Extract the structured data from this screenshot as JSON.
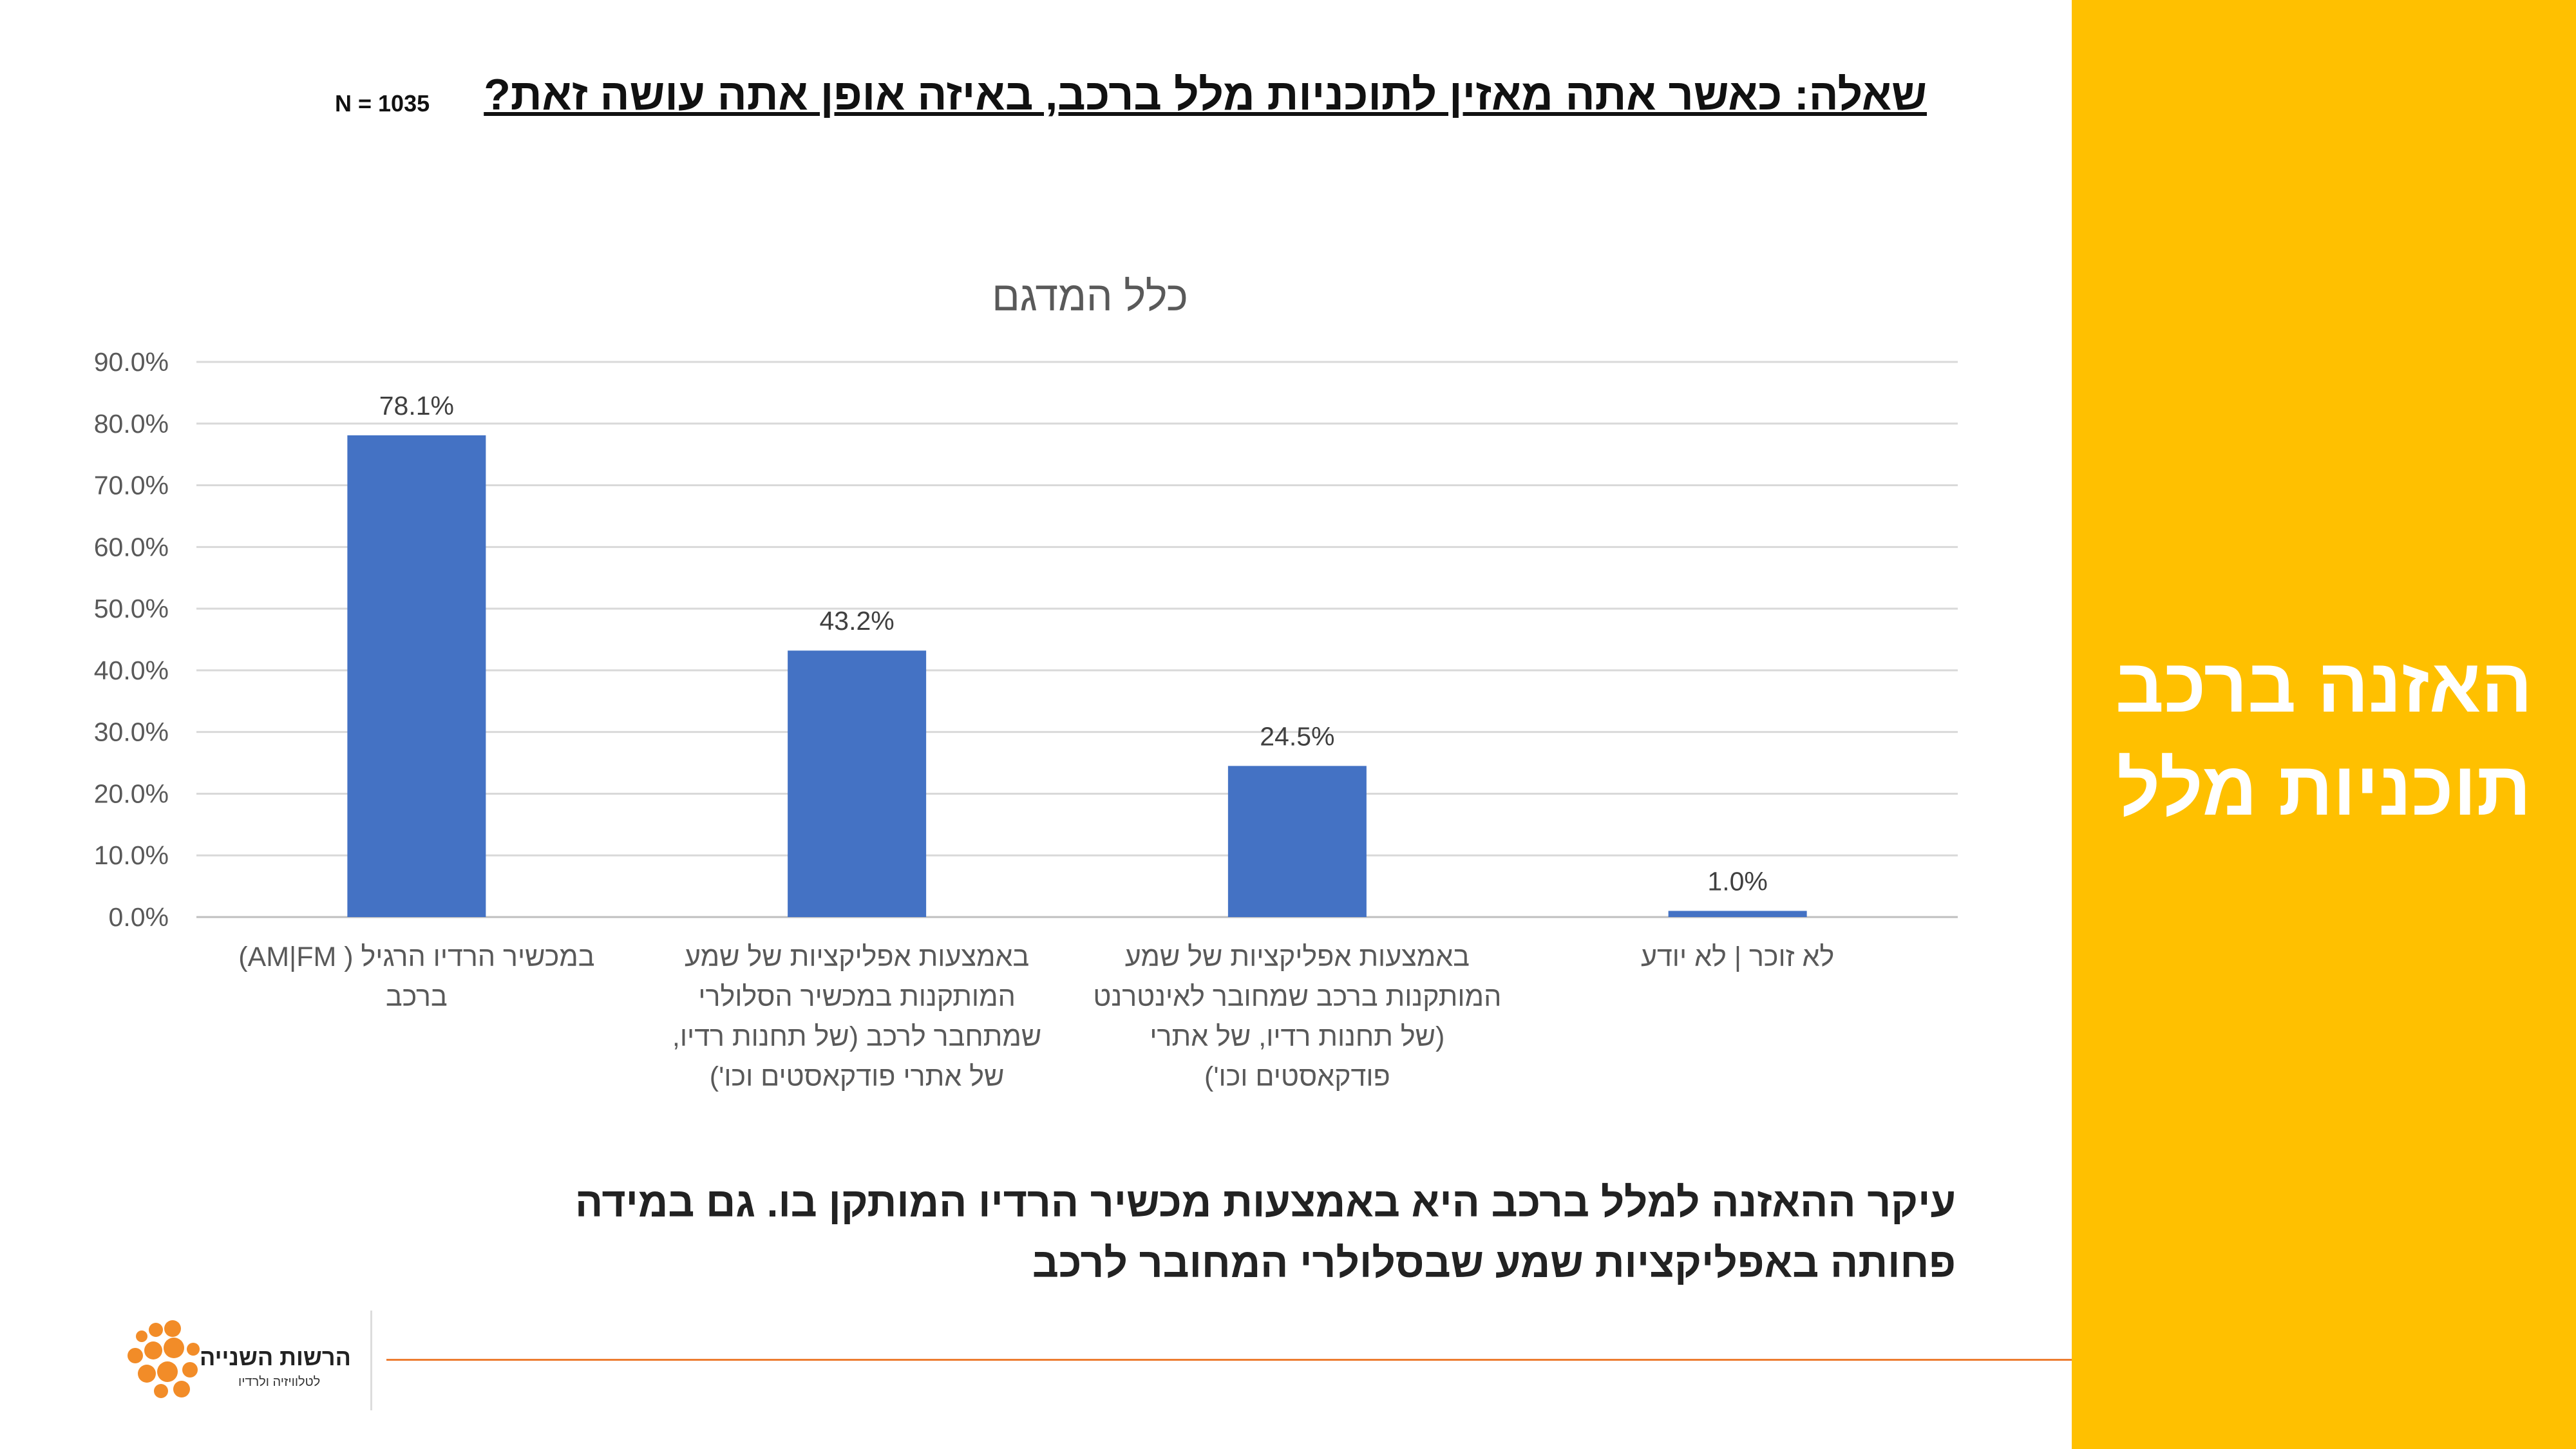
{
  "slide": {
    "question": "שאלה: כאשר אתה מאזין לתוכניות מלל ברכב, באיזה אופן אתה עושה זאת?",
    "sample_size": "N = 1035",
    "sidebar_title_line1": "האזנה ברכב",
    "sidebar_title_line2": "תוכניות מלל",
    "takeaway": "עיקר ההאזנה למלל ברכב היא באמצעות מכשיר הרדיו המותקן בו. גם במידה פחותה באפליקציות שמע שבסלולרי המחובר לרכב",
    "logo_text": "הרשות השנייה",
    "logo_subtext": "לטלוויזיה ולרדיו",
    "colors": {
      "sidebar": "#FFC000",
      "bar": "#4472C4",
      "footer_line": "#ED7D31"
    }
  },
  "chart_data": {
    "type": "bar",
    "title": "כלל המדגם",
    "categories": [
      [
        "במכשיר הרדיו הרגיל ( AM|FM)",
        "ברכב"
      ],
      [
        "באמצעות אפליקציות של שמע",
        "המותקנות במכשיר הסלולרי",
        "שמתחבר לרכב (של תחנות רדיו,",
        "של אתרי פודקאסטים וכו')"
      ],
      [
        "באמצעות אפליקציות של שמע",
        "המותקנות ברכב שמחובר לאינטרנט",
        "(של תחנות רדיו, של אתרי",
        "פודקאסטים וכו')"
      ],
      [
        "לא זוכר | לא יודע"
      ]
    ],
    "values": [
      78.1,
      43.2,
      24.5,
      1.0
    ],
    "data_labels": [
      "78.1%",
      "43.2%",
      "24.5%",
      "1.0%"
    ],
    "ylim": [
      0,
      90
    ],
    "yticks": [
      "0.0%",
      "10.0%",
      "20.0%",
      "30.0%",
      "40.0%",
      "50.0%",
      "60.0%",
      "70.0%",
      "80.0%",
      "90.0%"
    ],
    "grid": true,
    "legend": "none"
  }
}
